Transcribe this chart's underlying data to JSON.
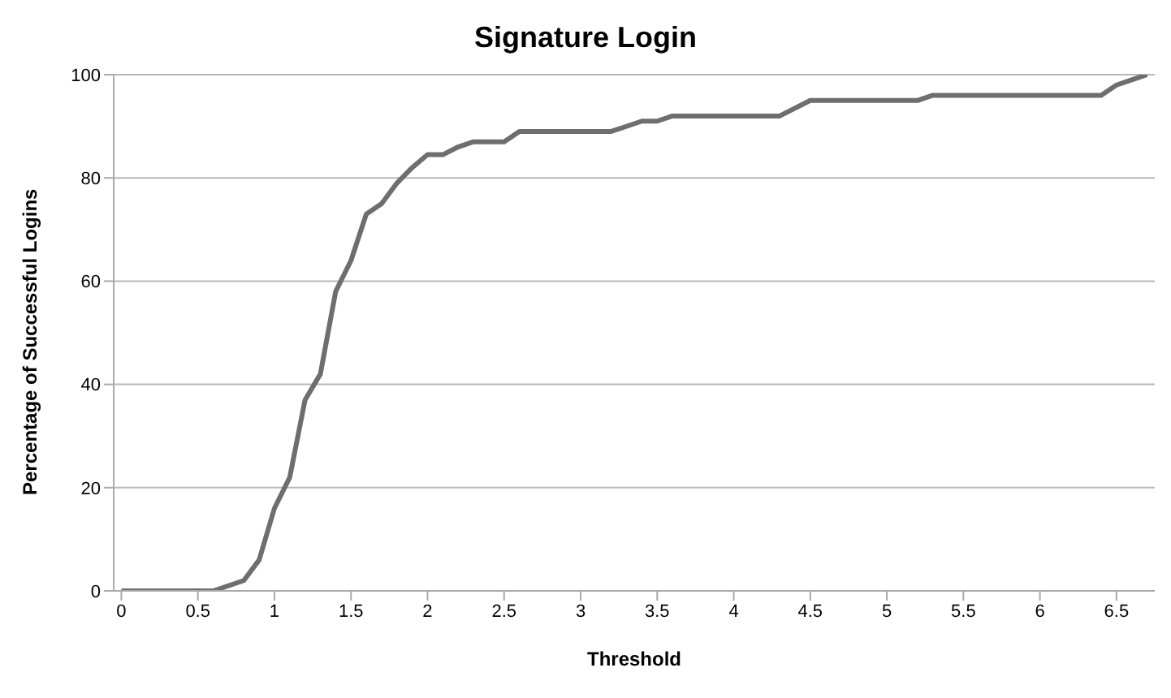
{
  "chart_data": {
    "type": "line",
    "title": "Signature Login",
    "xlabel": "Threshold",
    "ylabel": "Percentage of Successful Logins",
    "x": [
      0,
      0.6,
      0.8,
      0.9,
      1.0,
      1.1,
      1.2,
      1.3,
      1.4,
      1.5,
      1.6,
      1.7,
      1.8,
      1.9,
      2.0,
      2.1,
      2.2,
      2.3,
      2.5,
      2.6,
      3.2,
      3.4,
      3.5,
      3.6,
      4.3,
      4.5,
      5.2,
      5.3,
      6.4,
      6.5,
      6.6,
      6.7
    ],
    "series": [
      {
        "color": "#6e6e6e",
        "values": [
          0,
          0,
          2,
          6,
          16,
          22,
          37,
          42,
          58,
          64,
          73,
          75,
          79,
          82,
          84.5,
          84.5,
          86,
          87,
          87,
          89,
          89,
          91,
          91,
          92,
          92,
          95,
          95,
          96,
          96,
          98,
          99,
          100
        ]
      }
    ],
    "xlim": [
      -0.05,
      6.75
    ],
    "xticks": [
      0,
      0.5,
      1,
      1.5,
      2,
      2.5,
      3,
      3.5,
      4,
      4.5,
      5,
      5.5,
      6,
      6.5
    ],
    "ylim": [
      0,
      100
    ],
    "yticks": [
      0,
      20,
      40,
      60,
      80,
      100
    ],
    "grid": "y",
    "legend": false,
    "marker": "none",
    "line_style": "solid"
  }
}
